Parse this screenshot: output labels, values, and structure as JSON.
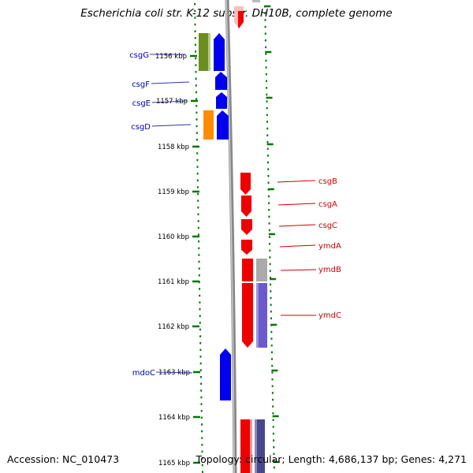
{
  "title": "Escherichia coli str. K-12 substr. DH10B, complete genome",
  "footer": {
    "accession": "Accession: NC_010473",
    "topology": "Topology: circular; Length: 4,686,137 bp; Genes: 4,271"
  },
  "colors": {
    "left_strand": "#0000ee",
    "right_strand": "#ee0000",
    "left_label": "#0000aa",
    "right_label": "#cc0000",
    "backbone": "#888888",
    "tick": "#007700",
    "olive": "#6b8e23",
    "orange": "#ff8c00",
    "slate": "#6a5acd",
    "gray": "#aaaaaa"
  },
  "scale": {
    "ticks": [
      {
        "label": "1156 kbp"
      },
      {
        "label": "1157 kbp"
      },
      {
        "label": "1158 kbp"
      },
      {
        "label": "1159 kbp"
      },
      {
        "label": "1160 kbp"
      },
      {
        "label": "1161 kbp"
      },
      {
        "label": "1162 kbp"
      },
      {
        "label": "1163 kbp"
      },
      {
        "label": "1164 kbp"
      },
      {
        "label": "1165 kbp"
      }
    ]
  },
  "genes_left": [
    {
      "name": "csgG"
    },
    {
      "name": "csgF"
    },
    {
      "name": "csgE"
    },
    {
      "name": "csgD"
    },
    {
      "name": "mdoC"
    }
  ],
  "genes_right": [
    {
      "name": "csgB"
    },
    {
      "name": "csgA"
    },
    {
      "name": "csgC"
    },
    {
      "name": "ymdA"
    },
    {
      "name": "ymdB"
    },
    {
      "name": "ymdC"
    }
  ]
}
